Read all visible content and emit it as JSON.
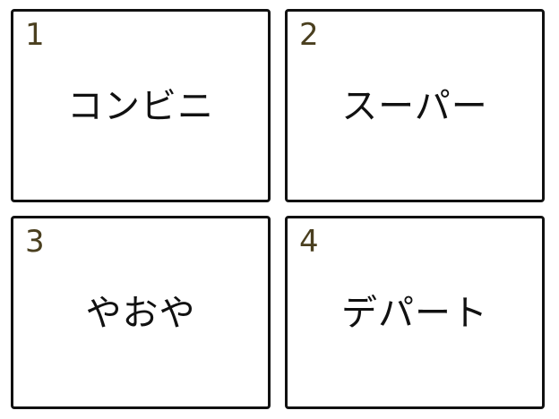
{
  "cards": [
    {
      "number": "1",
      "label": "コンビニ"
    },
    {
      "number": "2",
      "label": "スーパー"
    },
    {
      "number": "3",
      "label": "やおや"
    },
    {
      "number": "4",
      "label": "デパート"
    }
  ],
  "colors": {
    "number_text": "#4a3f1f",
    "label_text": "#111111",
    "border": "#111111",
    "background": "#ffffff"
  }
}
